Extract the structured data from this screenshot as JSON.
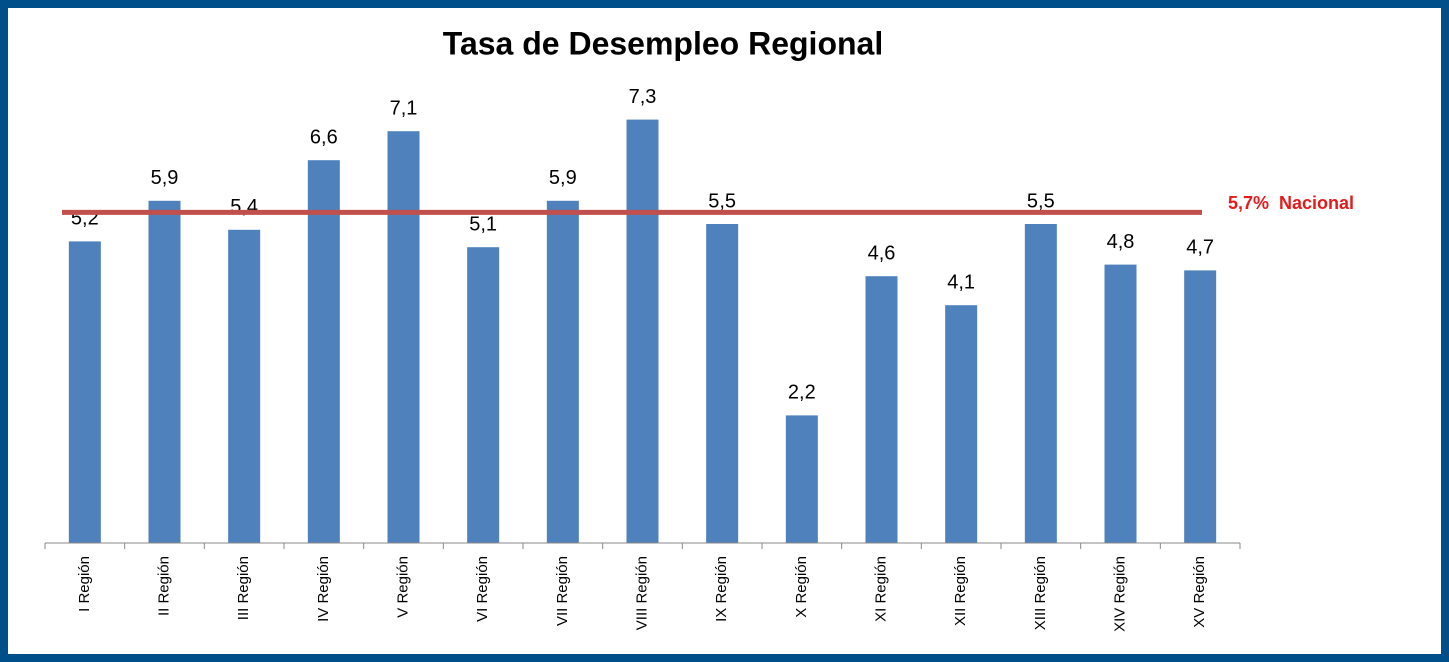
{
  "chart_data": {
    "type": "bar",
    "title": "Tasa de Desempleo Regional",
    "categories": [
      "I Región",
      "II Región",
      "III Región",
      "IV Región",
      "V Región",
      "VI Región",
      "VII Región",
      "VIII Región",
      "IX Región",
      "X Región",
      "XI Región",
      "XII Región",
      "XIII Región",
      "XIV Región",
      "XV Región"
    ],
    "values": [
      5.2,
      5.9,
      5.4,
      6.6,
      7.1,
      5.1,
      5.9,
      7.3,
      5.5,
      2.2,
      4.6,
      4.1,
      5.5,
      4.8,
      4.7
    ],
    "value_labels": [
      "5,2",
      "5,9",
      "5,4",
      "6,6",
      "7,1",
      "5,1",
      "5,9",
      "7,3",
      "5,5",
      "2,2",
      "4,6",
      "4,1",
      "5,5",
      "4,8",
      "4,7"
    ],
    "color": "#4f81bd",
    "ylim": [
      0,
      8
    ],
    "reference_line": {
      "value": 5.7,
      "label": "5,7%  Nacional",
      "color": "#c0504d",
      "label_color": "#e31b1b"
    }
  }
}
